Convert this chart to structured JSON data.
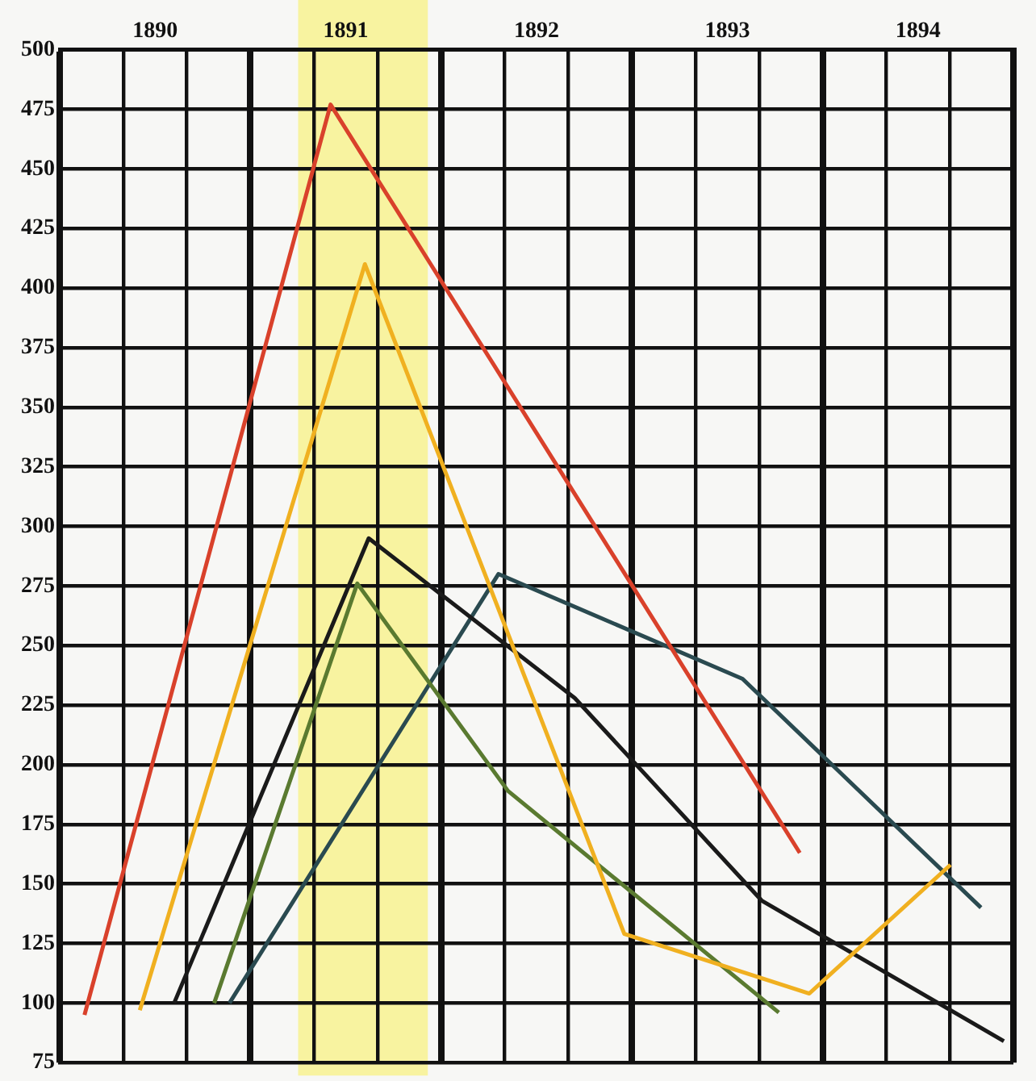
{
  "chart_data": {
    "type": "line",
    "xlim": [
      1890,
      1895
    ],
    "ylim": [
      75,
      500
    ],
    "xticks": [
      {
        "value": 1890,
        "label": null
      },
      {
        "value": 1890.333,
        "label": null
      },
      {
        "value": 1890.5,
        "label": "1890"
      },
      {
        "value": 1890.667,
        "label": null
      },
      {
        "value": 1891,
        "label": null
      },
      {
        "value": 1891.333,
        "label": null
      },
      {
        "value": 1891.5,
        "label": "1891"
      },
      {
        "value": 1891.667,
        "label": null
      },
      {
        "value": 1892,
        "label": null
      },
      {
        "value": 1892.333,
        "label": null
      },
      {
        "value": 1892.5,
        "label": "1892"
      },
      {
        "value": 1892.667,
        "label": null
      },
      {
        "value": 1893,
        "label": null
      },
      {
        "value": 1893.333,
        "label": null
      },
      {
        "value": 1893.5,
        "label": "1893"
      },
      {
        "value": 1893.667,
        "label": null
      },
      {
        "value": 1894,
        "label": null
      },
      {
        "value": 1894.333,
        "label": null
      },
      {
        "value": 1894.5,
        "label": "1894"
      },
      {
        "value": 1894.667,
        "label": null
      },
      {
        "value": 1895,
        "label": null
      }
    ],
    "yticks": [
      75,
      100,
      125,
      150,
      175,
      200,
      225,
      250,
      275,
      300,
      325,
      350,
      375,
      400,
      425,
      450,
      475,
      500
    ],
    "grid": true,
    "marker": "none",
    "line_style": "solid",
    "legend": false,
    "bands": [
      {
        "axis": "x",
        "from": 1891.25,
        "to": 1891.93,
        "color": "#f8f3a0"
      }
    ],
    "series": [
      {
        "color": "#d9412b",
        "x": [
          1890.13,
          1891.42,
          1893.88
        ],
        "values": [
          95,
          477,
          163
        ]
      },
      {
        "color": "#f0b020",
        "x": [
          1890.42,
          1891.6,
          1892.96,
          1893.93,
          1894.67
        ],
        "values": [
          97,
          410,
          129,
          104,
          158
        ]
      },
      {
        "color": "#1a1a1a",
        "x": [
          1890.6,
          1891.62,
          1892.7,
          1893.68,
          1894.95
        ],
        "values": [
          100,
          295,
          228,
          143,
          84
        ]
      },
      {
        "color": "#5a7a30",
        "x": [
          1890.81,
          1891.56,
          1892.35,
          1893.77
        ],
        "values": [
          100,
          276,
          189,
          96
        ]
      },
      {
        "color": "#2a4a50",
        "x": [
          1890.89,
          1892.3,
          1893.58,
          1894.83
        ],
        "values": [
          100,
          280,
          236,
          140
        ]
      }
    ]
  }
}
